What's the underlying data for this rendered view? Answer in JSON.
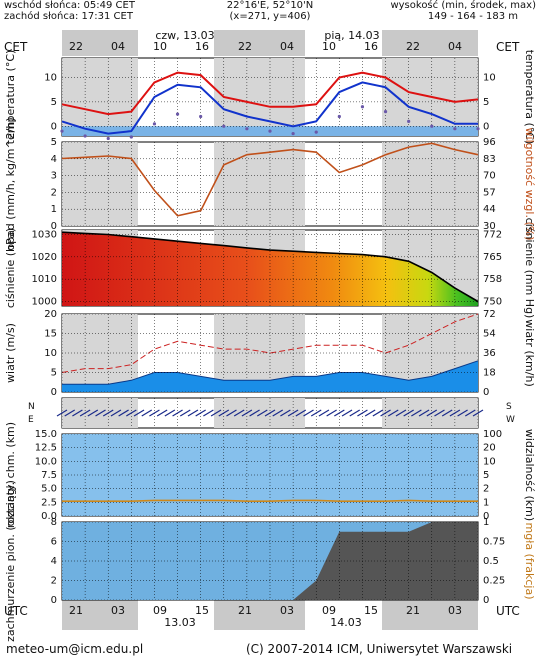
{
  "header": {
    "sunrise": "wschód słońca: 05:49 CET",
    "sunset": "zachód słońca: 17:31 CET",
    "coords": "22°16'E, 52°10'N",
    "grid": "(x=271, y=406)",
    "elev_label": "wysokość (min, środek, max)",
    "elev_values": "149 - 164 - 183 m",
    "tz_left": "CET",
    "tz_right": "CET",
    "day1": "czw, 13.03",
    "day2": "pią, 14.03",
    "top_hours": [
      "22",
      "04",
      "10",
      "16",
      "22",
      "04",
      "10",
      "16",
      "22",
      "04"
    ]
  },
  "bottom": {
    "tz_left": "UTC",
    "tz_right": "UTC",
    "hours": [
      "21",
      "03",
      "09",
      "15",
      "21",
      "03",
      "09",
      "15",
      "21",
      "03"
    ],
    "date1": "13.03",
    "date2": "14.03"
  },
  "footer": {
    "email": "meteo-um@icm.edu.pl",
    "copyright": "(C) 2007-2014 ICM, Uniwersytet Warszawski"
  },
  "panels": {
    "temperature": {
      "ylabel_left": "temperatura (°C)",
      "ylabel_right": "temperatura (°C)"
    },
    "precip": {
      "ylabel_left": "opad (mm/h, kg/m^2/h)",
      "ylabel_right": "wilgotność wzgl. (%)"
    },
    "pressure": {
      "ylabel_left": "ciśnienie (hPa)",
      "ylabel_right": "ciśnienie (mm Hg)"
    },
    "wind": {
      "ylabel_left": "wiatr (m/s)",
      "ylabel_right": "wiatr (km/h)"
    },
    "direction": {
      "n_label": "N",
      "e_label": "E",
      "s_label": "S",
      "w_label": "W"
    },
    "cloud_base": {
      "ylabel_left": "rozciągł. chm. (km)",
      "ylabel_right": "widzialność (km)"
    },
    "cover": {
      "ylabel_left": "zachmurzenie pion. (oktanty)",
      "ylabel_right": "mgła (frakcja)"
    }
  },
  "chart_data": [
    {
      "type": "line",
      "name": "temperature",
      "x": [
        0,
        3,
        6,
        9,
        12,
        15,
        18,
        21,
        24,
        27,
        30,
        33,
        36,
        39,
        42,
        45,
        48,
        51,
        54
      ],
      "series": [
        {
          "values": [
            4.5,
            3.5,
            2.5,
            3,
            9,
            11,
            10.5,
            6,
            5,
            4,
            4,
            4.5,
            10,
            11,
            10,
            7,
            6,
            5,
            5.5
          ]
        },
        {
          "values": [
            1,
            -0.5,
            -1.5,
            -1,
            6,
            8.5,
            8,
            3.5,
            2,
            1,
            0,
            1,
            7,
            9,
            8,
            4,
            2.5,
            0.5,
            0.5
          ]
        },
        {
          "values": [
            -1,
            -2,
            -2.5,
            -2.2,
            0.5,
            2.5,
            2,
            0,
            -0.5,
            -1,
            -1.5,
            -1.2,
            2,
            4,
            3,
            1,
            0,
            -0.5,
            -0.5
          ]
        }
      ],
      "ylim": [
        -2,
        14
      ],
      "ticks_left": [
        "0",
        "5",
        "10"
      ],
      "ticks_right": [
        "0",
        "5",
        "10"
      ]
    },
    {
      "type": "line",
      "name": "humidity",
      "x": [
        0,
        3,
        6,
        9,
        12,
        15,
        18,
        21,
        24,
        27,
        30,
        33,
        36,
        39,
        42,
        45,
        48,
        51,
        54
      ],
      "series": [
        {
          "values": [
            83,
            84,
            85,
            83,
            58,
            38,
            42,
            78,
            86,
            88,
            90,
            88,
            72,
            78,
            86,
            92,
            95,
            90,
            86
          ]
        }
      ],
      "ylim": [
        30,
        96
      ],
      "ticks_left": [
        "0",
        "1",
        "2",
        "3",
        "4",
        "5"
      ],
      "ticks_right": [
        "30",
        "44",
        "57",
        "70",
        "83",
        "96"
      ]
    },
    {
      "type": "area",
      "name": "pressure",
      "x": [
        0,
        3,
        6,
        9,
        12,
        15,
        18,
        21,
        24,
        27,
        30,
        33,
        36,
        39,
        42,
        45,
        48,
        51,
        54
      ],
      "series": [
        {
          "values": [
            1031,
            1030.5,
            1030,
            1029,
            1028,
            1027,
            1026,
            1025,
            1024,
            1023,
            1022.5,
            1022,
            1021.5,
            1021,
            1020,
            1018,
            1013,
            1006,
            1000
          ]
        }
      ],
      "ylim": [
        998,
        1032
      ],
      "ticks_left": [
        "1000",
        "1010",
        "1020",
        "1030"
      ],
      "ticks_right": [
        "750",
        "758",
        "765",
        "772"
      ]
    },
    {
      "type": "area",
      "name": "wind",
      "x": [
        0,
        3,
        6,
        9,
        12,
        15,
        18,
        21,
        24,
        27,
        30,
        33,
        36,
        39,
        42,
        45,
        48,
        51,
        54
      ],
      "series": [
        {
          "values": [
            2,
            2,
            2,
            3,
            5,
            5,
            4,
            3,
            3,
            3,
            4,
            4,
            5,
            5,
            4,
            3,
            4,
            6,
            8
          ]
        },
        {
          "values": [
            5,
            6,
            6,
            7,
            11,
            13,
            12,
            11,
            11,
            10,
            11,
            12,
            12,
            12,
            10,
            12,
            15,
            18,
            20
          ]
        }
      ],
      "ylim": [
        0,
        20
      ],
      "ticks_left": [
        "0",
        "5",
        "10",
        "15",
        "20"
      ],
      "ticks_right": [
        "0",
        "18",
        "36",
        "54",
        "72"
      ]
    },
    {
      "type": "scatter",
      "name": "cloud_visibility",
      "x": [
        0,
        3,
        6,
        9,
        12,
        15,
        18,
        21,
        24,
        27,
        30,
        33,
        36,
        39,
        42,
        45,
        48,
        51,
        54
      ],
      "series": [
        {
          "values": [
            18,
            18,
            18,
            18,
            19,
            19,
            19,
            19,
            18,
            18,
            19,
            19,
            18,
            18,
            18,
            19,
            18,
            18,
            18
          ]
        }
      ],
      "ylim": [
        0,
        100
      ],
      "ticks_left": [
        "0.0",
        "2.5",
        "5.0",
        "7.5",
        "10.0",
        "12.5",
        "15.0"
      ],
      "ticks_right": [
        "0",
        "1",
        "2",
        "5",
        "10",
        "20",
        "100"
      ]
    },
    {
      "type": "area",
      "name": "cloud_cover",
      "x": [
        0,
        3,
        6,
        9,
        12,
        15,
        18,
        21,
        24,
        27,
        30,
        33,
        36,
        39,
        42,
        45,
        48,
        51,
        54
      ],
      "series": [
        {
          "values": [
            0,
            0,
            0,
            0,
            0,
            0,
            0,
            0,
            0,
            0,
            0,
            2,
            7,
            7,
            7,
            7,
            8,
            8,
            8
          ]
        }
      ],
      "ylim": [
        0,
        8
      ],
      "ticks_left": [
        "0",
        "2",
        "4",
        "6",
        "8"
      ],
      "ticks_right": [
        "0",
        "0.25",
        "0.5",
        "0.75",
        "1"
      ]
    }
  ]
}
